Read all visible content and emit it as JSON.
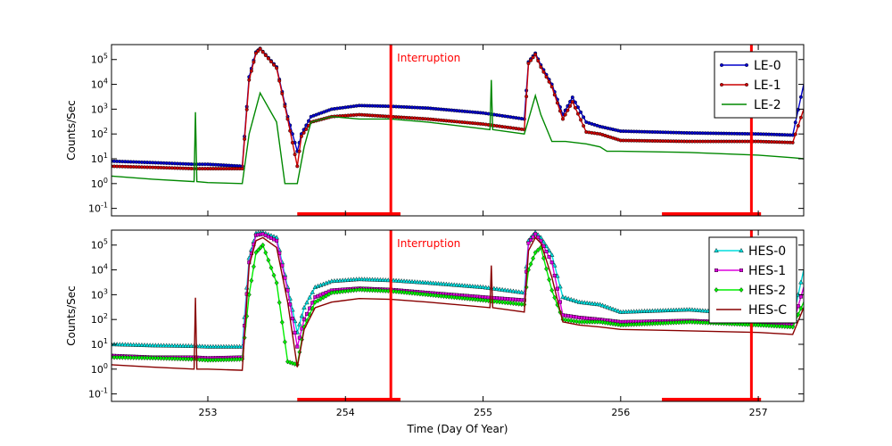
{
  "chart_data": {
    "type": "line",
    "xlabel": "Time (Day Of Year)",
    "xlim": [
      252.3,
      257.33
    ],
    "x_ticks": [
      253,
      254,
      255,
      256,
      257
    ],
    "x_tick_labels": [
      "253",
      "254",
      "255",
      "256",
      "257"
    ],
    "y_scale": "log",
    "ylim": [
      0.05,
      400000
    ],
    "y_ticks": [
      0.1,
      1,
      10,
      100,
      1000,
      10000,
      100000
    ],
    "y_tick_bases": [
      "10",
      "10",
      "10",
      "10",
      "10",
      "10",
      "10"
    ],
    "y_tick_exps": [
      "-1",
      "0",
      "1",
      "2",
      "3",
      "4",
      "5"
    ],
    "panels": [
      {
        "id": "top",
        "ylabel": "Counts/Sec",
        "annotation": "Interruption",
        "interruption_x": 254.33,
        "markers": [
          [
            253.65,
            254.4
          ],
          [
            256.3,
            257.02
          ]
        ],
        "vline_x": 256.95,
        "legend": "top-right",
        "series": [
          {
            "name": "LE-0",
            "color": "#0000cc",
            "marker": "dot",
            "x": [
              252.3,
              252.6,
              252.9,
              253.0,
              253.25,
              253.3,
              253.35,
              253.38,
              253.5,
              253.58,
              253.65,
              253.68,
              253.75,
              253.9,
              254.1,
              254.33,
              254.6,
              255.0,
              255.3,
              255.33,
              255.38,
              255.42,
              255.5,
              255.58,
              255.65,
              255.75,
              255.85,
              256.0,
              256.5,
              257.0,
              257.25,
              257.33
            ],
            "y": [
              8,
              7,
              6,
              6,
              5,
              20000,
              200000,
              280000,
              50000,
              500,
              20,
              100,
              500,
              1000,
              1400,
              1300,
              1100,
              700,
              400,
              80000,
              180000,
              60000,
              10000,
              600,
              3000,
              300,
              200,
              130,
              110,
              100,
              90,
              10000
            ]
          },
          {
            "name": "LE-1",
            "color": "#cc0000",
            "marker": "dot",
            "x": [
              252.3,
              252.6,
              252.9,
              253.0,
              253.25,
              253.3,
              253.35,
              253.38,
              253.5,
              253.58,
              253.65,
              253.68,
              253.75,
              253.9,
              254.1,
              254.33,
              254.6,
              255.0,
              255.3,
              255.33,
              255.38,
              255.42,
              255.5,
              255.58,
              255.65,
              255.75,
              255.85,
              256.0,
              256.5,
              257.0,
              257.25,
              257.33
            ],
            "y": [
              5,
              4.5,
              4,
              4,
              4,
              15000,
              180000,
              270000,
              45000,
              400,
              5,
              80,
              300,
              500,
              600,
              500,
              400,
              250,
              150,
              70000,
              160000,
              50000,
              8000,
              400,
              2000,
              120,
              100,
              55,
              50,
              50,
              45,
              1000
            ]
          },
          {
            "name": "LE-2",
            "color": "#008800",
            "marker": "none",
            "x": [
              252.3,
              252.6,
              252.9,
              252.91,
              252.92,
              253.0,
              253.25,
              253.3,
              253.38,
              253.5,
              253.56,
              253.65,
              253.7,
              253.75,
              253.9,
              254.1,
              254.33,
              254.6,
              255.05,
              255.06,
              255.07,
              255.3,
              255.38,
              255.42,
              255.5,
              255.6,
              255.75,
              255.85,
              255.9,
              256.0,
              256.5,
              257.0,
              257.25,
              257.33
            ],
            "y": [
              2,
              1.5,
              1.2,
              750,
              1.2,
              1.1,
              1.0,
              100,
              4500,
              300,
              1,
              1,
              30,
              300,
              500,
              400,
              400,
              300,
              150,
              15000,
              150,
              100,
              3500,
              600,
              50,
              50,
              40,
              30,
              20,
              20,
              18,
              14,
              11,
              10
            ]
          }
        ]
      },
      {
        "id": "bottom",
        "ylabel": "Counts/Sec",
        "annotation": "Interruption",
        "interruption_x": 254.33,
        "markers": [
          [
            253.65,
            254.4
          ],
          [
            256.3,
            257.02
          ]
        ],
        "vline_x": 256.95,
        "legend": "top-right",
        "series": [
          {
            "name": "HES-0",
            "color": "#00dddd",
            "marker": "triangle",
            "x": [
              252.3,
              252.6,
              252.9,
              253.0,
              253.25,
              253.3,
              253.35,
              253.4,
              253.5,
              253.58,
              253.65,
              253.7,
              253.78,
              253.9,
              254.1,
              254.33,
              254.6,
              255.0,
              255.3,
              255.33,
              255.38,
              255.42,
              255.5,
              255.58,
              255.7,
              255.85,
              256.0,
              256.5,
              257.0,
              257.25,
              257.33
            ],
            "y": [
              10,
              9,
              8.5,
              8,
              8,
              30000,
              300000,
              320000,
              200000,
              2000,
              30,
              300,
              2000,
              3500,
              4200,
              3800,
              3000,
              2000,
              1200,
              150000,
              320000,
              200000,
              40000,
              800,
              500,
              400,
              200,
              250,
              150,
              100,
              10000
            ]
          },
          {
            "name": "HES-1",
            "color": "#dd00dd",
            "marker": "square",
            "x": [
              252.3,
              252.6,
              252.9,
              253.0,
              253.25,
              253.3,
              253.35,
              253.4,
              253.5,
              253.58,
              253.65,
              253.7,
              253.78,
              253.9,
              254.1,
              254.33,
              254.6,
              255.0,
              255.3,
              255.33,
              255.38,
              255.42,
              255.5,
              255.58,
              255.7,
              255.85,
              256.0,
              256.5,
              257.0,
              257.25,
              257.33
            ],
            "y": [
              3.5,
              3,
              3,
              2.8,
              3,
              20000,
              250000,
              280000,
              150000,
              1500,
              8,
              100,
              800,
              1500,
              1800,
              1600,
              1200,
              800,
              600,
              120000,
              280000,
              150000,
              20000,
              150,
              120,
              100,
              80,
              90,
              70,
              60,
              2000
            ]
          },
          {
            "name": "HES-2",
            "color": "#00ee00",
            "marker": "diamond",
            "x": [
              252.3,
              252.6,
              252.9,
              253.0,
              253.25,
              253.3,
              253.35,
              253.4,
              253.5,
              253.58,
              253.65,
              253.7,
              253.78,
              253.9,
              254.1,
              254.33,
              254.6,
              255.0,
              255.3,
              255.33,
              255.38,
              255.42,
              255.5,
              255.58,
              255.7,
              255.85,
              256.0,
              256.5,
              257.0,
              257.25,
              257.33
            ],
            "y": [
              3,
              2.8,
              2.5,
              2.3,
              2.5,
              1000,
              50000,
              100000,
              3000,
              2,
              1.5,
              50,
              500,
              1200,
              1600,
              1400,
              1000,
              600,
              400,
              10000,
              50000,
              80000,
              1500,
              100,
              80,
              80,
              60,
              80,
              60,
              50,
              500
            ]
          },
          {
            "name": "HES-C",
            "color": "#880000",
            "marker": "none",
            "x": [
              252.3,
              252.6,
              252.9,
              252.91,
              252.92,
              253.0,
              253.25,
              253.3,
              253.35,
              253.4,
              253.5,
              253.58,
              253.65,
              253.7,
              253.78,
              253.9,
              254.1,
              254.33,
              254.6,
              255.05,
              255.06,
              255.07,
              255.3,
              255.33,
              255.38,
              255.42,
              255.5,
              255.58,
              255.7,
              255.85,
              256.0,
              256.5,
              257.0,
              257.25,
              257.33
            ],
            "y": [
              1.5,
              1.2,
              1,
              750,
              1,
              1,
              0.9,
              15000,
              150000,
              200000,
              80000,
              500,
              1.2,
              40,
              300,
              500,
              700,
              650,
              500,
              300,
              15000,
              300,
              200,
              60000,
              200000,
              120000,
              5000,
              80,
              60,
              50,
              40,
              35,
              30,
              25,
              300
            ]
          }
        ]
      }
    ]
  }
}
